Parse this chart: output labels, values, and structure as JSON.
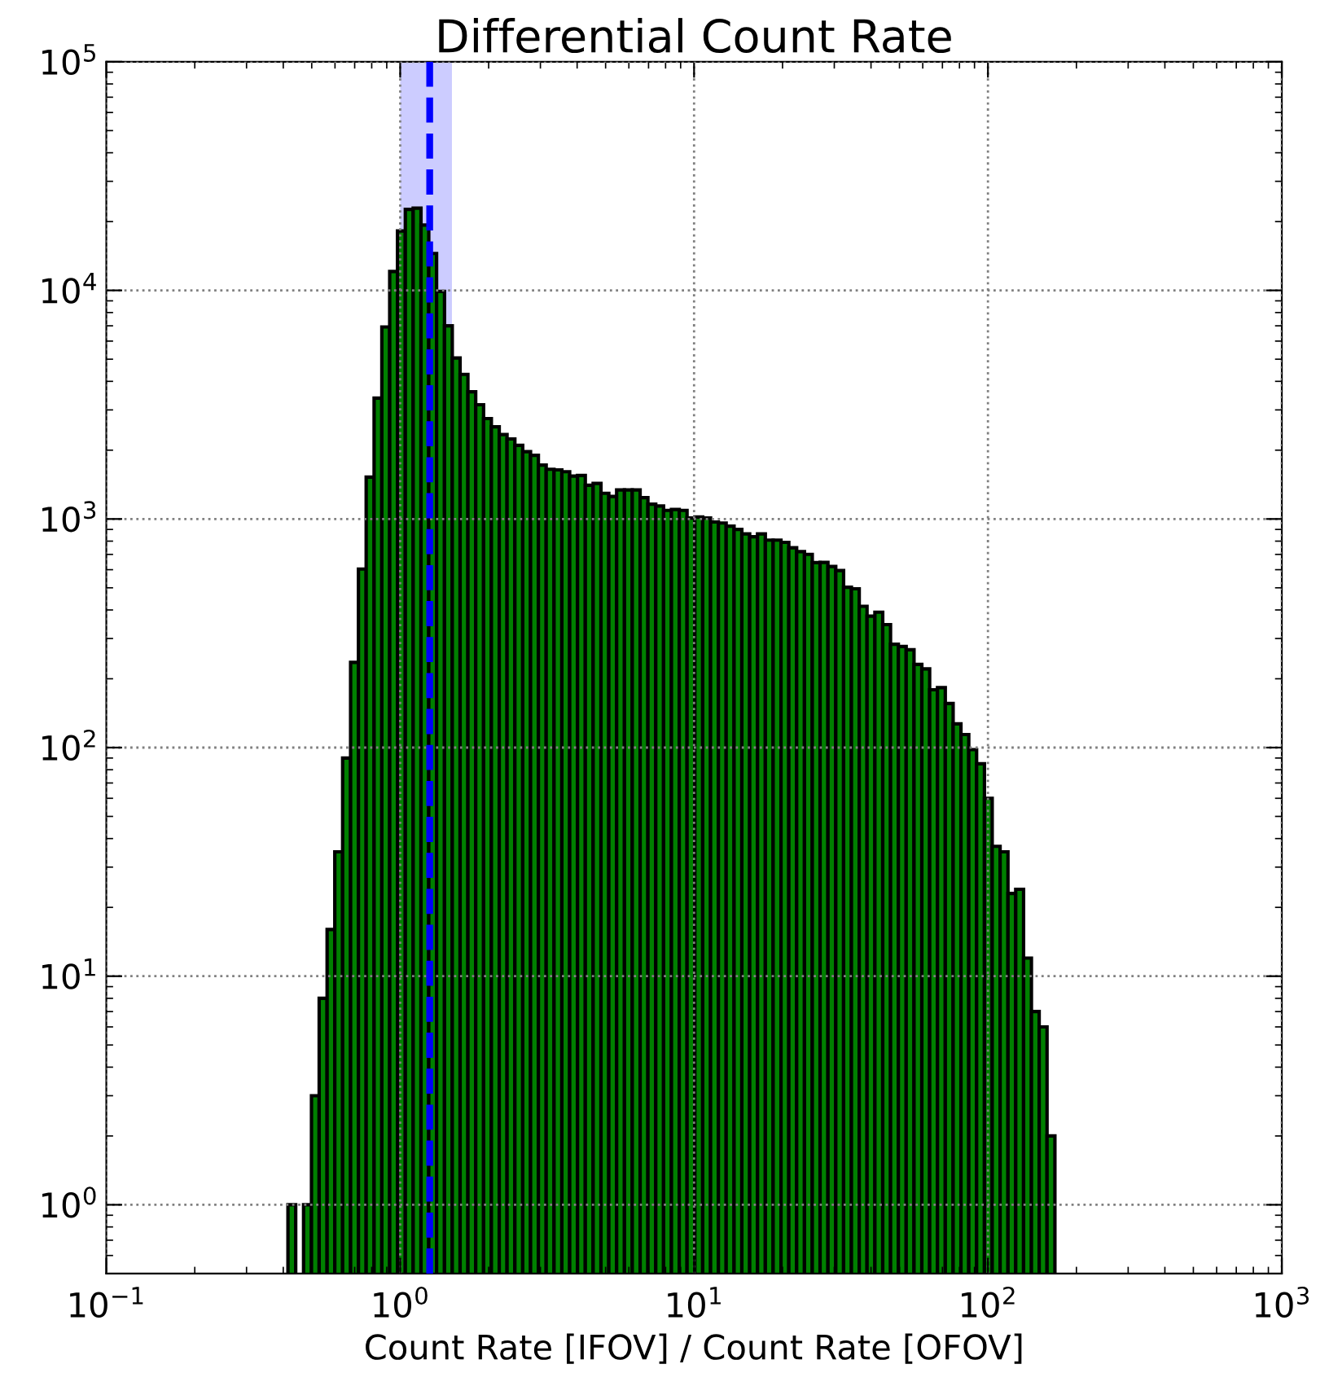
{
  "chart_data": {
    "type": "histogram",
    "title": "Differential Count Rate",
    "xlabel": "Count Rate [IFOV] / Count Rate [OFOV]",
    "bins": [
      0.415,
      0.441,
      0.469,
      0.499,
      0.53,
      0.564,
      0.599,
      0.637,
      0.678,
      0.721,
      0.766,
      0.815,
      0.866,
      0.921,
      0.979,
      1.041,
      1.107,
      1.177,
      1.251,
      1.33,
      1.415,
      1.504,
      1.599,
      1.7,
      1.807,
      1.922,
      2.043,
      2.173,
      2.31,
      2.456,
      2.612,
      2.777,
      2.953,
      3.139,
      3.338,
      3.549,
      3.773,
      4.012,
      4.265,
      4.535,
      4.822,
      5.127,
      5.451,
      5.796,
      6.162,
      6.553,
      6.966,
      7.406,
      7.874,
      8.375,
      8.903,
      9.465,
      10.06,
      10.7,
      11.38,
      12.1,
      12.86,
      13.68,
      14.54,
      15.46,
      16.44,
      17.48,
      18.58,
      19.76,
      21.01,
      22.34,
      23.75,
      25.25,
      26.84,
      28.55,
      30.35,
      32.27,
      34.31,
      36.48,
      38.78,
      41.24,
      43.85,
      46.62,
      49.56,
      52.7,
      56.03,
      59.57,
      63.34,
      67.34,
      71.6,
      76.13,
      80.94,
      86.06,
      91.5,
      97.3,
      103.4,
      110.0,
      117.0,
      124.3,
      132.2,
      140.6,
      149.4,
      158.9,
      169.0
    ],
    "values": [
      1,
      null,
      1,
      3,
      8,
      16,
      35,
      90,
      236,
      604,
      1525,
      3380,
      6920,
      12100,
      18200,
      22600,
      22900,
      19300,
      14500,
      9900,
      7000,
      5060,
      4290,
      3600,
      3160,
      2750,
      2530,
      2340,
      2240,
      2100,
      1970,
      1900,
      1720,
      1650,
      1640,
      1610,
      1540,
      1550,
      1405,
      1430,
      1295,
      1255,
      1340,
      1340,
      1340,
      1240,
      1160,
      1140,
      1090,
      1100,
      1090,
      1010,
      1020,
      1010,
      970,
      960,
      930,
      900,
      860,
      836,
      860,
      808,
      808,
      790,
      748,
      720,
      700,
      644,
      646,
      620,
      595,
      503,
      495,
      415,
      376,
      391,
      345,
      283,
      277,
      268,
      231,
      221,
      179,
      183,
      156,
      127,
      114,
      98,
      85,
      60,
      37,
      35,
      23,
      24,
      12,
      7,
      6,
      2
    ],
    "color": "#008000",
    "log": "xy",
    "xlim": [
      0.1,
      1000
    ],
    "ylim": [
      0.5,
      100000
    ],
    "xticks": [
      {
        "value": 0.1,
        "label": "10$^{−1}$"
      },
      {
        "value": 1,
        "label": "10$^{0}$"
      },
      {
        "value": 10,
        "label": "10$^{1}$"
      },
      {
        "value": 100,
        "label": "10$^{2}$"
      },
      {
        "value": 1000,
        "label": "10$^{3}$"
      }
    ],
    "yticks": [
      {
        "value": 1,
        "label": "10$^{0}$"
      },
      {
        "value": 10,
        "label": "10$^{1}$"
      },
      {
        "value": 100,
        "label": "10$^{2}$"
      },
      {
        "value": 1000,
        "label": "10$^{3}$"
      },
      {
        "value": 10000,
        "label": "10$^{4}$"
      },
      {
        "value": 100000,
        "label": "10$^{5}$"
      }
    ],
    "grid": true,
    "bands": [
      {
        "axis": "x",
        "from": 1.0,
        "to": 1.5,
        "color": "#ccccff"
      }
    ],
    "ref_lines": [
      {
        "axis": "x",
        "value": 1.26,
        "color": "#0000ff",
        "line_style": "dashed"
      }
    ]
  }
}
